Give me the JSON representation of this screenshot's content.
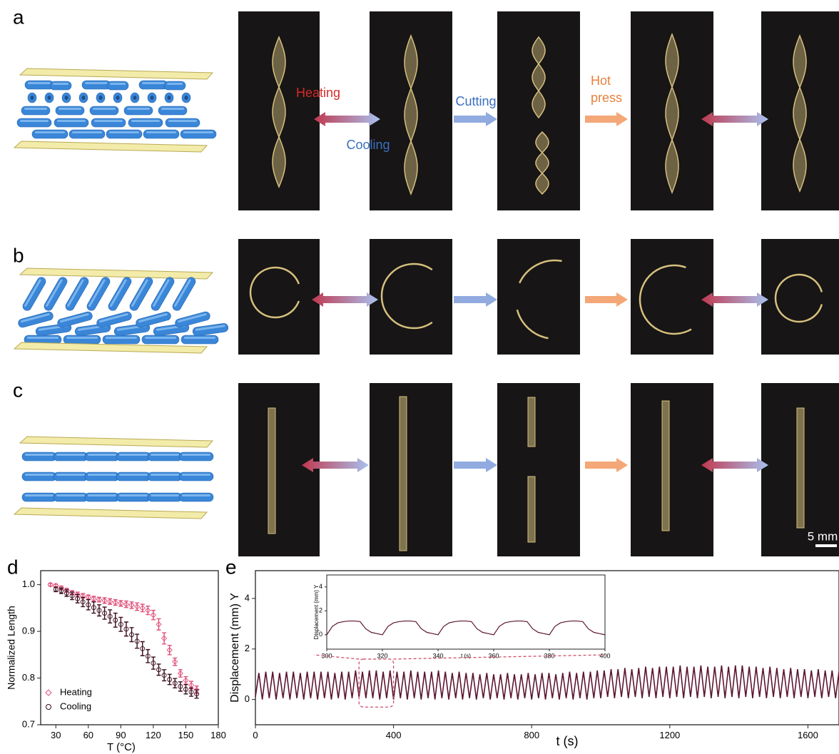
{
  "panel_labels": [
    "a",
    "b",
    "c",
    "d",
    "e"
  ],
  "process_labels": {
    "heating": "Heating",
    "cooling": "Cooling",
    "cutting": "Cutting",
    "hot_press": [
      "Hot",
      "press"
    ]
  },
  "scale_bar": "5 mm",
  "chart_data": [
    {
      "type": "scatter",
      "x_label": "T (°C)",
      "y_label": "Normalized Length",
      "xlim": [
        16,
        180
      ],
      "xticks": [
        30,
        60,
        90,
        120,
        150,
        180
      ],
      "ylim": [
        0.7,
        1.03
      ],
      "yticks": [
        0.7,
        0.8,
        0.9,
        {
          "value": 1,
          "label": "1.0"
        }
      ],
      "legend": "lower left",
      "series": [
        {
          "name": "Heating",
          "color": "#e0507a",
          "marker": "diamond",
          "x": [
            25,
            30,
            35,
            40,
            45,
            50,
            55,
            60,
            65,
            70,
            75,
            80,
            85,
            90,
            95,
            100,
            105,
            110,
            115,
            120,
            125,
            130,
            135,
            140,
            145,
            150,
            155,
            160
          ],
          "values": [
            1.0,
            0.998,
            0.993,
            0.988,
            0.983,
            0.979,
            0.976,
            0.973,
            0.97,
            0.968,
            0.966,
            0.964,
            0.962,
            0.96,
            0.958,
            0.956,
            0.953,
            0.95,
            0.945,
            0.935,
            0.915,
            0.885,
            0.86,
            0.835,
            0.81,
            0.795,
            0.785,
            0.775
          ],
          "errors": [
            0.003,
            0.003,
            0.004,
            0.004,
            0.004,
            0.005,
            0.005,
            0.005,
            0.005,
            0.005,
            0.006,
            0.006,
            0.006,
            0.006,
            0.007,
            0.007,
            0.008,
            0.008,
            0.009,
            0.01,
            0.012,
            0.012,
            0.01,
            0.008,
            0.008,
            0.008,
            0.008,
            0.008
          ]
        },
        {
          "name": "Cooling",
          "color": "#3a0d1e",
          "marker": "circle",
          "x": [
            30,
            35,
            40,
            45,
            50,
            55,
            60,
            65,
            70,
            75,
            80,
            85,
            90,
            95,
            100,
            105,
            110,
            115,
            120,
            125,
            130,
            135,
            140,
            145,
            150,
            155,
            160
          ],
          "values": [
            0.99,
            0.987,
            0.982,
            0.976,
            0.97,
            0.963,
            0.957,
            0.951,
            0.945,
            0.939,
            0.932,
            0.924,
            0.915,
            0.905,
            0.893,
            0.879,
            0.863,
            0.847,
            0.832,
            0.818,
            0.806,
            0.797,
            0.789,
            0.782,
            0.776,
            0.77,
            0.766
          ],
          "errors": [
            0.005,
            0.006,
            0.007,
            0.008,
            0.009,
            0.01,
            0.011,
            0.012,
            0.012,
            0.013,
            0.014,
            0.015,
            0.015,
            0.015,
            0.015,
            0.015,
            0.015,
            0.014,
            0.013,
            0.012,
            0.012,
            0.011,
            0.01,
            0.01,
            0.01,
            0.009,
            0.009
          ]
        }
      ]
    },
    {
      "type": "line",
      "x_label": "t (s)",
      "y_label": "Displacement (mm) Y",
      "xlim": [
        0,
        1690
      ],
      "xticks": [
        0,
        400,
        800,
        1200,
        1600
      ],
      "ylim": [
        -1,
        5.1
      ],
      "yticks": [
        0,
        2,
        4
      ],
      "series": [
        {
          "color": "#5c1530",
          "x": [
            0,
            10,
            20,
            30,
            40,
            50,
            60,
            70,
            80,
            90,
            100,
            110,
            120,
            130,
            140,
            150,
            160,
            170,
            180,
            190,
            200,
            210,
            220,
            230,
            240,
            250,
            260,
            270,
            280,
            290,
            300,
            310,
            320,
            330,
            340,
            350,
            360,
            370,
            380,
            390,
            400,
            410,
            420,
            430,
            440,
            450,
            460,
            470,
            480,
            490,
            500,
            510,
            520,
            530,
            540,
            550,
            560,
            570,
            580,
            590,
            600,
            610,
            620,
            630,
            640,
            650,
            660,
            670,
            680,
            690,
            700,
            710,
            720,
            730,
            740,
            750,
            760,
            770,
            780,
            790,
            800,
            810,
            820,
            830,
            840,
            850,
            860,
            870,
            880,
            890,
            900,
            910,
            920,
            930,
            940,
            950,
            960,
            970,
            980,
            990,
            1000,
            1010,
            1020,
            1030,
            1040,
            1050,
            1060,
            1070,
            1080,
            1090,
            1100,
            1110,
            1120,
            1130,
            1140,
            1150,
            1160,
            1170,
            1180,
            1190,
            1200,
            1210,
            1220,
            1230,
            1240,
            1250,
            1260,
            1270,
            1280,
            1290,
            1300,
            1310,
            1320,
            1330,
            1340,
            1350,
            1360,
            1370,
            1380,
            1390,
            1400,
            1410,
            1420,
            1430,
            1440,
            1450,
            1460,
            1470,
            1480,
            1490,
            1500,
            1510,
            1520,
            1530,
            1540,
            1550,
            1560,
            1570,
            1580,
            1590,
            1600,
            1610,
            1620,
            1630,
            1640,
            1650,
            1660,
            1670,
            1680,
            1690
          ],
          "values": [
            0.1,
            1.05,
            0.0,
            1.1,
            0.05,
            1.1,
            0.0,
            1.05,
            0.05,
            1.1,
            0.0,
            1.1,
            0.05,
            1.05,
            0.0,
            1.1,
            0.05,
            1.1,
            0.0,
            1.1,
            0.05,
            1.1,
            0.0,
            1.05,
            0.05,
            1.1,
            0.0,
            1.1,
            0.05,
            1.15,
            0.1,
            1.1,
            0.05,
            1.15,
            0.05,
            1.15,
            0.0,
            1.1,
            0.05,
            1.15,
            0.0,
            1.1,
            0.05,
            1.1,
            0.0,
            1.15,
            0.05,
            1.1,
            0.0,
            1.1,
            0.05,
            1.1,
            0.0,
            1.15,
            0.05,
            1.1,
            0.0,
            1.05,
            0.05,
            1.1,
            0.0,
            1.05,
            0.05,
            1.05,
            0.0,
            1.0,
            0.05,
            1.05,
            0.0,
            1.0,
            0.05,
            1.0,
            0.0,
            1.05,
            0.05,
            1.0,
            0.0,
            1.0,
            0.05,
            1.05,
            0.0,
            1.0,
            0.05,
            1.05,
            0.0,
            1.05,
            0.05,
            1.0,
            0.0,
            1.05,
            0.05,
            1.1,
            0.0,
            1.05,
            0.05,
            1.1,
            0.0,
            1.1,
            0.05,
            1.15,
            0.05,
            1.15,
            0.1,
            1.2,
            0.05,
            1.2,
            0.1,
            1.25,
            0.05,
            1.2,
            0.1,
            1.25,
            0.05,
            1.3,
            0.1,
            1.25,
            0.05,
            1.3,
            0.1,
            1.3,
            0.05,
            1.3,
            0.1,
            1.35,
            0.05,
            1.3,
            0.1,
            1.3,
            0.05,
            1.35,
            0.1,
            1.3,
            0.05,
            1.3,
            0.1,
            1.35,
            0.05,
            1.3,
            0.1,
            1.35,
            0.05,
            1.35,
            0.1,
            1.3,
            0.05,
            1.3,
            0.1,
            1.25,
            0.05,
            1.3,
            0.1,
            1.25,
            0.05,
            1.2,
            0.1,
            1.25,
            0.05,
            1.2,
            0.1,
            1.2,
            0.05,
            1.15,
            0.1,
            1.2,
            0.05,
            1.15,
            0.1,
            1.15,
            0.05,
            1.1
          ]
        }
      ]
    },
    {
      "type": "line",
      "x_label": "t (s)",
      "y_label": "Displacement (mm) Y",
      "xlim": [
        300,
        400
      ],
      "xticks": [
        300,
        320,
        340,
        360,
        380,
        400
      ],
      "ylim": [
        -1.2,
        5
      ],
      "yticks": [
        0,
        2,
        4
      ],
      "series": [
        {
          "color": "#5c1530",
          "x": [
            300,
            302,
            304,
            306,
            308,
            310,
            312,
            314,
            316,
            318,
            320,
            322,
            324,
            326,
            328,
            330,
            332,
            334,
            336,
            338,
            340,
            342,
            344,
            346,
            348,
            350,
            352,
            354,
            356,
            358,
            360,
            362,
            364,
            366,
            368,
            370,
            372,
            374,
            376,
            378,
            380,
            382,
            384,
            386,
            388,
            390,
            392,
            394,
            396,
            398,
            400
          ],
          "values": [
            0.0,
            0.7,
            1.0,
            1.1,
            1.15,
            1.15,
            1.1,
            0.5,
            0.2,
            0.1,
            0.0,
            0.7,
            1.0,
            1.1,
            1.15,
            1.15,
            1.1,
            0.5,
            0.2,
            0.1,
            0.0,
            0.7,
            1.0,
            1.1,
            1.15,
            1.15,
            1.1,
            0.5,
            0.2,
            0.1,
            0.0,
            0.7,
            1.0,
            1.1,
            1.15,
            1.15,
            1.1,
            0.5,
            0.2,
            0.1,
            0.0,
            0.7,
            1.0,
            1.1,
            1.15,
            1.15,
            1.1,
            0.5,
            0.2,
            0.1,
            0.0
          ]
        }
      ]
    }
  ]
}
